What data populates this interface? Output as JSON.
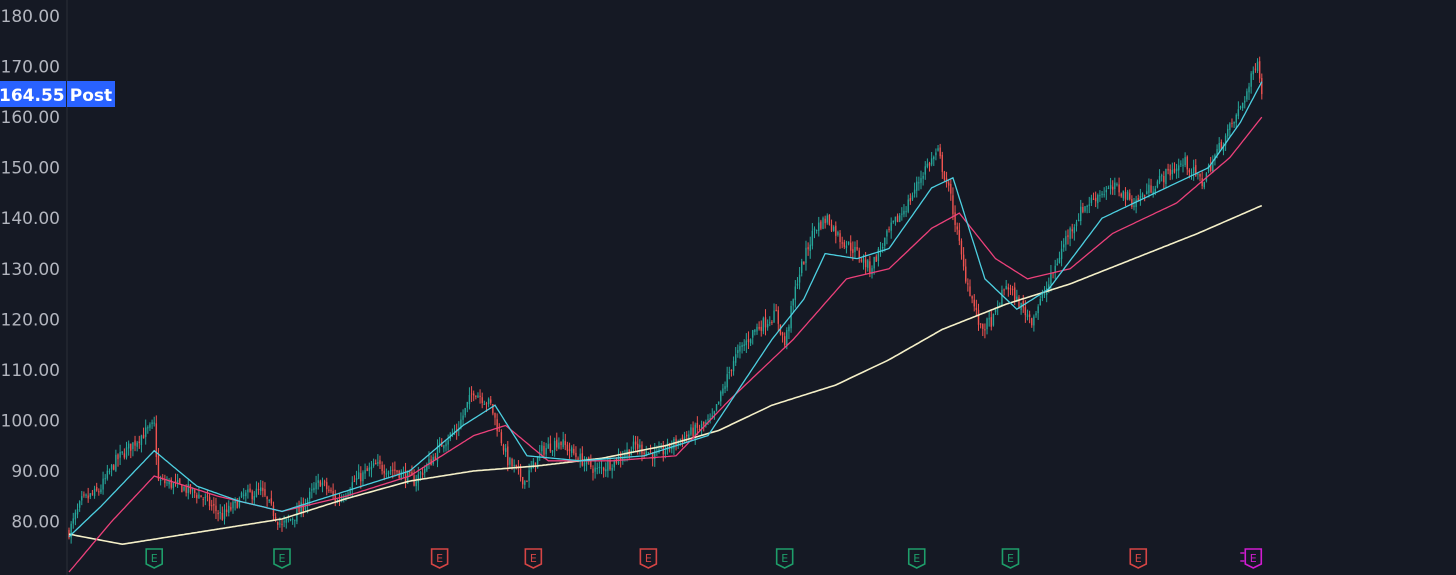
{
  "chart_data": {
    "type": "candlestick",
    "y_ticks": [
      "180.00",
      "170.00",
      "160.00",
      "150.00",
      "140.00",
      "130.00",
      "120.00",
      "110.00",
      "100.00",
      "90.00",
      "80.00"
    ],
    "ylim": [
      70,
      180
    ],
    "last_price": {
      "value": "164.55",
      "tag": "Post"
    },
    "colors": {
      "background": "#151924",
      "up": "#26a69a",
      "down": "#ef5350",
      "ema_fast": "#4dd0e1",
      "ema_mid": "#ec407a",
      "sma_long": "#f5f0c8",
      "price_label": "#2962ff",
      "earnings_past_up": "#1e9e6a",
      "earnings_past_down": "#d64545",
      "earnings_upcoming": "#d21cd2"
    },
    "price_path": [
      [
        0,
        78
      ],
      [
        6,
        84
      ],
      [
        14,
        86
      ],
      [
        22,
        92
      ],
      [
        34,
        97
      ],
      [
        40,
        99
      ],
      [
        42,
        88
      ],
      [
        52,
        87
      ],
      [
        62,
        85
      ],
      [
        72,
        81
      ],
      [
        82,
        85
      ],
      [
        90,
        86
      ],
      [
        100,
        79
      ],
      [
        108,
        82
      ],
      [
        118,
        88
      ],
      [
        126,
        84
      ],
      [
        134,
        88
      ],
      [
        144,
        91
      ],
      [
        154,
        90
      ],
      [
        162,
        88
      ],
      [
        170,
        92
      ],
      [
        176,
        96
      ],
      [
        182,
        98
      ],
      [
        190,
        106
      ],
      [
        198,
        103
      ],
      [
        206,
        92
      ],
      [
        214,
        88
      ],
      [
        222,
        94
      ],
      [
        230,
        96
      ],
      [
        238,
        93
      ],
      [
        248,
        90
      ],
      [
        256,
        92
      ],
      [
        266,
        95
      ],
      [
        276,
        93
      ],
      [
        286,
        96
      ],
      [
        294,
        98
      ],
      [
        302,
        100
      ],
      [
        312,
        112
      ],
      [
        322,
        118
      ],
      [
        332,
        121
      ],
      [
        336,
        115
      ],
      [
        342,
        128
      ],
      [
        350,
        138
      ],
      [
        356,
        140
      ],
      [
        362,
        136
      ],
      [
        368,
        134
      ],
      [
        376,
        130
      ],
      [
        386,
        138
      ],
      [
        394,
        143
      ],
      [
        402,
        150
      ],
      [
        408,
        153
      ],
      [
        414,
        144
      ],
      [
        420,
        130
      ],
      [
        428,
        118
      ],
      [
        434,
        120
      ],
      [
        440,
        127
      ],
      [
        446,
        123
      ],
      [
        452,
        120
      ],
      [
        460,
        127
      ],
      [
        468,
        136
      ],
      [
        476,
        142
      ],
      [
        484,
        145
      ],
      [
        492,
        146
      ],
      [
        500,
        143
      ],
      [
        508,
        146
      ],
      [
        516,
        149
      ],
      [
        524,
        151
      ],
      [
        532,
        147
      ],
      [
        540,
        154
      ],
      [
        548,
        160
      ],
      [
        554,
        166
      ],
      [
        558,
        172
      ],
      [
        560,
        164.55
      ]
    ],
    "ema_fast": [
      [
        0,
        77
      ],
      [
        15,
        83
      ],
      [
        40,
        94
      ],
      [
        60,
        87
      ],
      [
        80,
        84
      ],
      [
        100,
        82
      ],
      [
        130,
        86
      ],
      [
        160,
        90
      ],
      [
        185,
        99
      ],
      [
        200,
        103
      ],
      [
        215,
        93
      ],
      [
        240,
        92
      ],
      [
        270,
        93
      ],
      [
        300,
        97
      ],
      [
        330,
        116
      ],
      [
        345,
        124
      ],
      [
        355,
        133
      ],
      [
        370,
        132
      ],
      [
        385,
        134
      ],
      [
        405,
        146
      ],
      [
        415,
        148
      ],
      [
        430,
        128
      ],
      [
        445,
        122
      ],
      [
        460,
        126
      ],
      [
        485,
        140
      ],
      [
        510,
        145
      ],
      [
        535,
        150
      ],
      [
        550,
        159
      ],
      [
        560,
        167
      ]
    ],
    "ema_mid": [
      [
        0,
        70
      ],
      [
        20,
        80
      ],
      [
        40,
        89
      ],
      [
        70,
        85
      ],
      [
        100,
        82
      ],
      [
        130,
        85
      ],
      [
        160,
        89
      ],
      [
        190,
        97
      ],
      [
        205,
        99
      ],
      [
        225,
        92
      ],
      [
        255,
        92
      ],
      [
        285,
        93
      ],
      [
        310,
        104
      ],
      [
        340,
        116
      ],
      [
        365,
        128
      ],
      [
        385,
        130
      ],
      [
        405,
        138
      ],
      [
        418,
        141
      ],
      [
        435,
        132
      ],
      [
        450,
        128
      ],
      [
        470,
        130
      ],
      [
        490,
        137
      ],
      [
        520,
        143
      ],
      [
        545,
        152
      ],
      [
        560,
        160
      ]
    ],
    "sma_long": [
      [
        0,
        77.5
      ],
      [
        25,
        75.5
      ],
      [
        40,
        76.5
      ],
      [
        70,
        78.5
      ],
      [
        100,
        80.5
      ],
      [
        130,
        84.5
      ],
      [
        160,
        88
      ],
      [
        190,
        90
      ],
      [
        220,
        91
      ],
      [
        250,
        92.5
      ],
      [
        280,
        95
      ],
      [
        305,
        98
      ],
      [
        330,
        103
      ],
      [
        360,
        107
      ],
      [
        385,
        112
      ],
      [
        410,
        118
      ],
      [
        440,
        123
      ],
      [
        470,
        127
      ],
      [
        500,
        132
      ],
      [
        530,
        137
      ],
      [
        560,
        142.5
      ]
    ],
    "earnings": [
      {
        "label": "E",
        "x": 40,
        "status": "up"
      },
      {
        "label": "E",
        "x": 100,
        "status": "up"
      },
      {
        "label": "E",
        "x": 174,
        "status": "down"
      },
      {
        "label": "E",
        "x": 218,
        "status": "down"
      },
      {
        "label": "E",
        "x": 272,
        "status": "down"
      },
      {
        "label": "E",
        "x": 336,
        "status": "up"
      },
      {
        "label": "E",
        "x": 398,
        "status": "up"
      },
      {
        "label": "E",
        "x": 442,
        "status": "up"
      },
      {
        "label": "E",
        "x": 502,
        "status": "down"
      },
      {
        "label": "E",
        "x": 556,
        "status": "upcoming"
      }
    ]
  }
}
